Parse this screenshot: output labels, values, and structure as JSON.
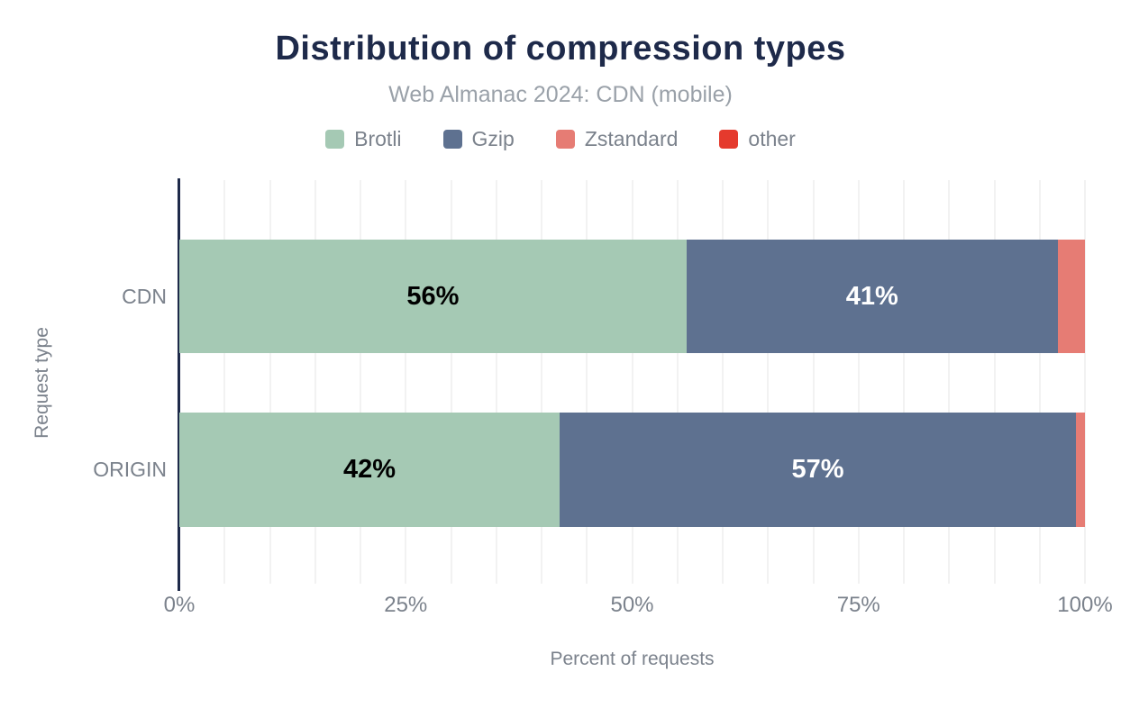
{
  "colors": {
    "background": "#ffffff",
    "title": "#1e2a4a",
    "subtitle": "#9aa1a9",
    "legend_text": "#7b828c",
    "tick_text": "#7b828c",
    "axis_title_text": "#7b828c",
    "axis_line": "#1e2a4a",
    "gridline": "#f2f2f2"
  },
  "chart_data": {
    "type": "bar",
    "orientation": "horizontal",
    "stacked": true,
    "title": "Distribution of compression types",
    "subtitle": "Web Almanac 2024: CDN (mobile)",
    "xlabel": "Percent of requests",
    "ylabel": "Request type",
    "categories": [
      "CDN",
      "ORIGIN"
    ],
    "series": [
      {
        "name": "Brotli",
        "color": "#a5c9b4",
        "values": [
          56,
          42
        ],
        "labels": [
          "56%",
          "42%"
        ],
        "label_color": "#000000"
      },
      {
        "name": "Gzip",
        "color": "#5e7190",
        "values": [
          41,
          57
        ],
        "labels": [
          "41%",
          "57%"
        ],
        "label_color": "#ffffff"
      },
      {
        "name": "Zstandard",
        "color": "#e67c74",
        "values": [
          3,
          1
        ],
        "labels": [
          "",
          ""
        ],
        "label_color": "#000000"
      },
      {
        "name": "other",
        "color": "#e53a2d",
        "values": [
          0,
          0
        ],
        "labels": [
          "",
          ""
        ],
        "label_color": "#ffffff"
      }
    ],
    "xlim": [
      0,
      100
    ],
    "xticks": [
      {
        "value": 0,
        "label": "0%"
      },
      {
        "value": 25,
        "label": "25%"
      },
      {
        "value": 50,
        "label": "50%"
      },
      {
        "value": 75,
        "label": "75%"
      },
      {
        "value": 100,
        "label": "100%"
      }
    ],
    "grid": {
      "axis": "x",
      "minor_step": 5,
      "visible": true
    },
    "legend_position": "top"
  }
}
